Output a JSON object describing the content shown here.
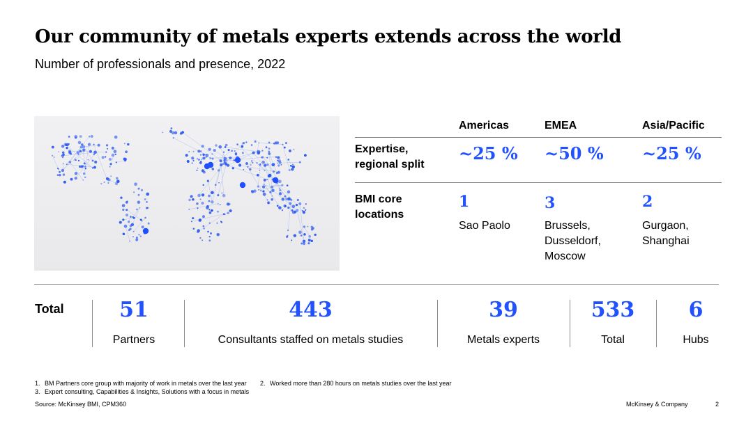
{
  "title": "Our community of metals experts extends across the world",
  "subtitle": "Number of professionals and presence, 2022",
  "map": {
    "icon": "world-map-network",
    "dot_color": "#2a58f0",
    "line_color": "#9fb6e8"
  },
  "table": {
    "columns": [
      "Americas",
      "EMEA",
      "Asia/Pacific"
    ],
    "rows": {
      "expertise": {
        "label": "Expertise, regional split",
        "values": [
          "~25 %",
          "~50 %",
          "~25 %"
        ]
      },
      "locations": {
        "label": "BMI core locations",
        "counts": [
          "1",
          "3",
          "2"
        ],
        "cities": [
          "Sao Paolo",
          "Brussels, Dusseldorf, Moscow",
          "Gurgaon, Shanghai"
        ]
      }
    }
  },
  "totals": {
    "label": "Total",
    "stats": [
      {
        "value": "51",
        "label": "Partners"
      },
      {
        "value": "443",
        "label": "Consultants staffed on metals studies"
      },
      {
        "value": "39",
        "label": "Metals experts"
      },
      {
        "value": "533",
        "label": "Total"
      },
      {
        "value": "6",
        "label": "Hubs"
      }
    ]
  },
  "footnotes": {
    "n1": {
      "num": "1.",
      "text": "BM Partners core group with majority of work in metals over the last year"
    },
    "n2": {
      "num": "2.",
      "text": "Worked more than 280 hours on metals studies over the last year"
    },
    "n3": {
      "num": "3.",
      "text": "Expert consulting, Capabilities & Insights, Solutions with a focus in metals"
    }
  },
  "source": "Source: McKinsey BMI, CPM360",
  "brand": "McKinsey & Company",
  "page_number": "2",
  "colors": {
    "accent": "#2251ff",
    "rule": "#7f7f7f"
  }
}
